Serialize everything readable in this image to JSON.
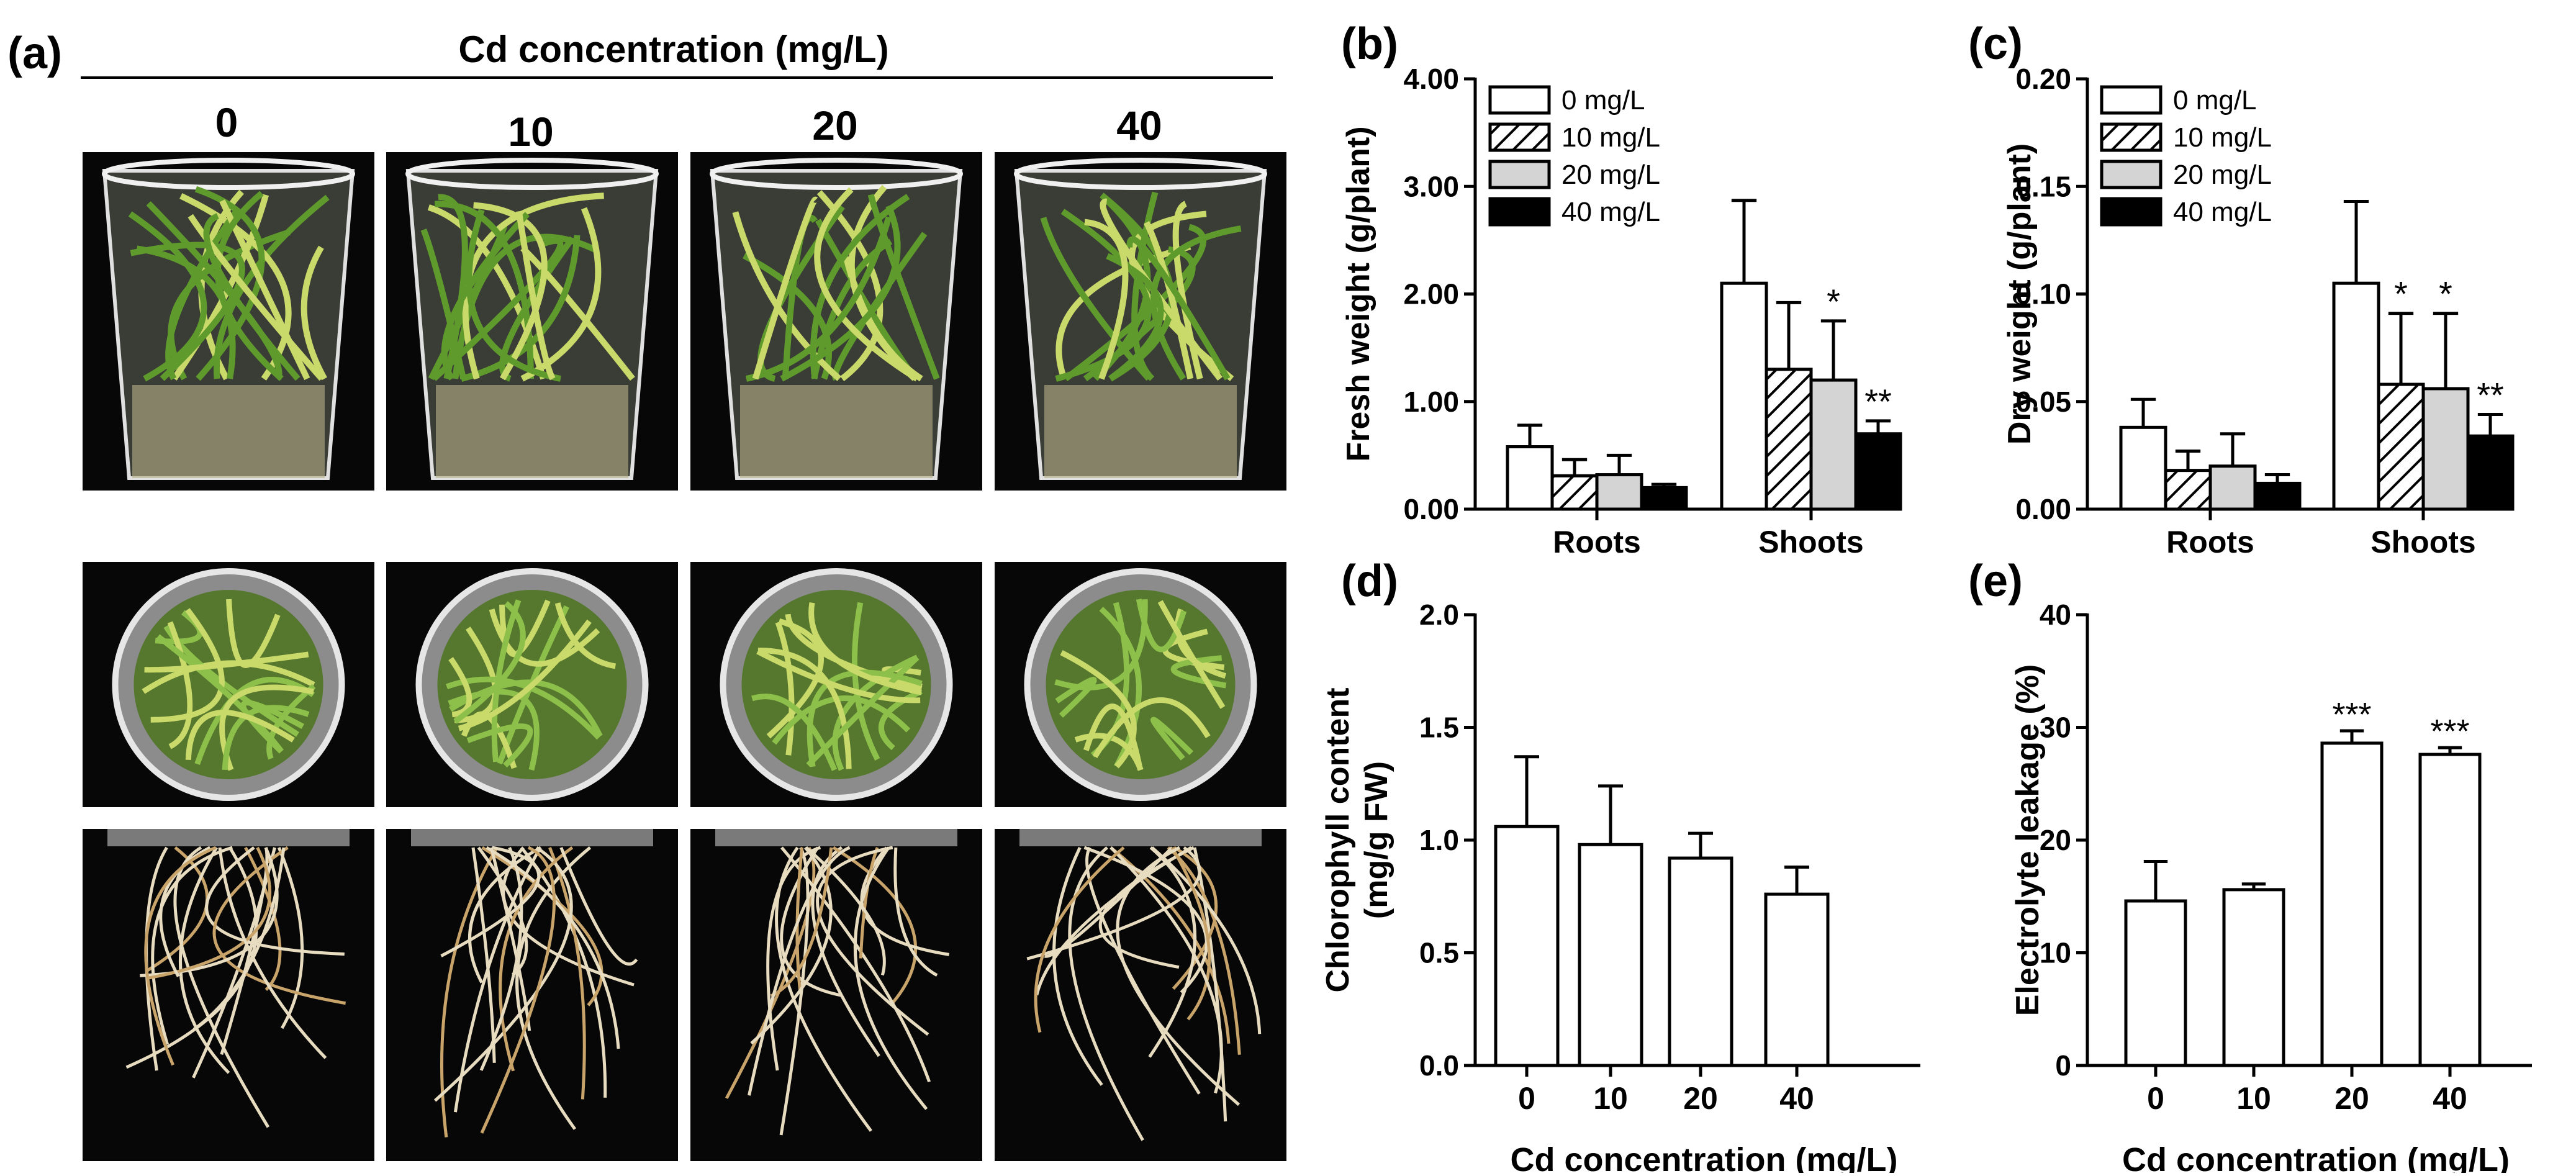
{
  "panel_a": {
    "label": "(a)",
    "header": "Cd concentration (mg/L)",
    "columns": [
      "0",
      "10",
      "20",
      "40"
    ],
    "rows": [
      "side-view-cup",
      "top-view-cup",
      "roots"
    ]
  },
  "colors": {
    "black": "#000000",
    "white": "#ffffff",
    "gray_bar": "#d4d4d4",
    "leaf_green": "#5f9a2c",
    "leaf_yellow": "#c9d96a",
    "root": "#e8dcc0",
    "photo_bg": "#070707"
  },
  "chart_data": [
    {
      "id": "b",
      "label": "(b)",
      "type": "bar",
      "ylabel": "Fresh weight (g/plant)",
      "xlabel": "",
      "categories": [
        "Roots",
        "Shoots"
      ],
      "ylim": [
        0,
        4
      ],
      "yticks": [
        "0.00",
        "1.00",
        "2.00",
        "3.00",
        "4.00"
      ],
      "series": [
        {
          "name": "0 mg/L",
          "fill": "white",
          "values": [
            0.58,
            2.1
          ],
          "errors": [
            0.2,
            0.77
          ],
          "sig": [
            "",
            ""
          ]
        },
        {
          "name": "10 mg/L",
          "fill": "hatch",
          "values": [
            0.31,
            1.3
          ],
          "errors": [
            0.15,
            0.62
          ],
          "sig": [
            "",
            ""
          ]
        },
        {
          "name": "20 mg/L",
          "fill": "gray",
          "values": [
            0.32,
            1.2
          ],
          "errors": [
            0.18,
            0.55
          ],
          "sig": [
            "",
            "*"
          ]
        },
        {
          "name": "40 mg/L",
          "fill": "black",
          "values": [
            0.2,
            0.7
          ],
          "errors": [
            0.03,
            0.12
          ],
          "sig": [
            "",
            "**"
          ]
        }
      ]
    },
    {
      "id": "c",
      "label": "(c)",
      "type": "bar",
      "ylabel": "Dry weight (g/plant)",
      "xlabel": "",
      "categories": [
        "Roots",
        "Shoots"
      ],
      "ylim": [
        0,
        0.2
      ],
      "yticks": [
        "0.00",
        "0.05",
        "0.10",
        "0.15",
        "0.20"
      ],
      "series": [
        {
          "name": "0 mg/L",
          "fill": "white",
          "values": [
            0.038,
            0.105
          ],
          "errors": [
            0.013,
            0.038
          ],
          "sig": [
            "",
            ""
          ]
        },
        {
          "name": "10 mg/L",
          "fill": "hatch",
          "values": [
            0.018,
            0.058
          ],
          "errors": [
            0.009,
            0.033
          ],
          "sig": [
            "",
            "*"
          ]
        },
        {
          "name": "20 mg/L",
          "fill": "gray",
          "values": [
            0.02,
            0.056
          ],
          "errors": [
            0.015,
            0.035
          ],
          "sig": [
            "",
            "*"
          ]
        },
        {
          "name": "40 mg/L",
          "fill": "black",
          "values": [
            0.012,
            0.034
          ],
          "errors": [
            0.004,
            0.01
          ],
          "sig": [
            "",
            "**"
          ]
        }
      ]
    },
    {
      "id": "d",
      "label": "(d)",
      "type": "bar",
      "ylabel": [
        "Chlorophyll content",
        "(mg/g FW)"
      ],
      "xlabel": "Cd concentration (mg/L)",
      "categories": [
        "0",
        "10",
        "20",
        "40"
      ],
      "ylim": [
        0,
        2
      ],
      "yticks": [
        "0.0",
        "0.5",
        "1.0",
        "1.5",
        "2.0"
      ],
      "values": [
        1.06,
        0.98,
        0.92,
        0.76
      ],
      "errors": [
        0.31,
        0.26,
        0.11,
        0.12
      ],
      "sig": [
        "",
        "",
        "",
        ""
      ]
    },
    {
      "id": "e",
      "label": "(e)",
      "type": "bar",
      "ylabel": "Electrolyte leakage (%)",
      "xlabel": "Cd concentration (mg/L)",
      "categories": [
        "0",
        "10",
        "20",
        "40"
      ],
      "ylim": [
        0,
        40
      ],
      "yticks": [
        "0",
        "10",
        "20",
        "30",
        "40"
      ],
      "values": [
        14.6,
        15.6,
        28.6,
        27.6
      ],
      "errors": [
        3.5,
        0.5,
        1.1,
        0.6
      ],
      "sig": [
        "",
        "",
        "***",
        "***"
      ]
    }
  ]
}
